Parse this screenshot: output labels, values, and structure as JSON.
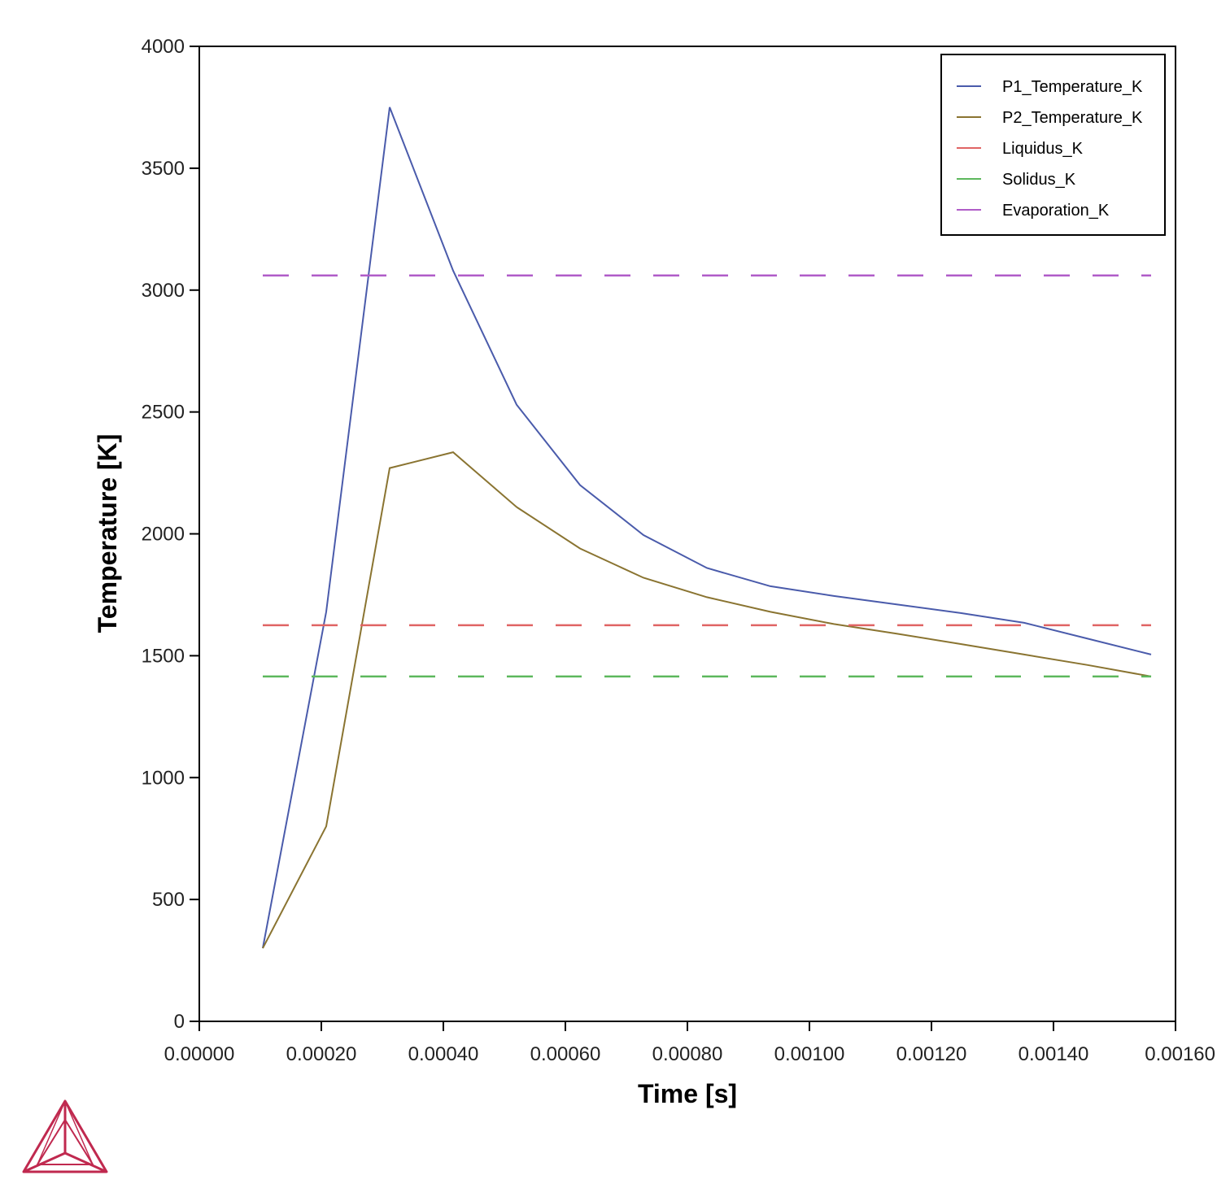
{
  "chart_data": {
    "type": "line",
    "xlabel": "Time [s]",
    "ylabel": "Temperature [K]",
    "xlim": [
      0,
      0.0016
    ],
    "ylim": [
      0,
      4000
    ],
    "xticks": [
      "0.00000",
      "0.00020",
      "0.00040",
      "0.00060",
      "0.00080",
      "0.00100",
      "0.00120",
      "0.00140",
      "0.00160"
    ],
    "yticks": [
      "0",
      "500",
      "1000",
      "1500",
      "2000",
      "2500",
      "3000",
      "3500",
      "4000"
    ],
    "grid": false,
    "legend_position": "top-right",
    "series": [
      {
        "name": "P1_Temperature_K",
        "color": "#4a5bab",
        "style": "solid",
        "x": [
          0.000104,
          0.000208,
          0.000312,
          0.000416,
          0.00052,
          0.000624,
          0.000728,
          0.000832,
          0.000936,
          0.00104,
          0.001144,
          0.001248,
          0.001352,
          0.001456,
          0.00156
        ],
        "y": [
          300,
          1680,
          3750,
          3080,
          2530,
          2200,
          1995,
          1860,
          1785,
          1745,
          1710,
          1675,
          1635,
          1570,
          1505
        ]
      },
      {
        "name": "P2_Temperature_K",
        "color": "#8a7431",
        "style": "solid",
        "x": [
          0.000104,
          0.000208,
          0.000312,
          0.000416,
          0.00052,
          0.000624,
          0.000728,
          0.000832,
          0.000936,
          0.00104,
          0.001144,
          0.001248,
          0.001352,
          0.001456,
          0.00156
        ],
        "y": [
          300,
          800,
          2270,
          2335,
          2110,
          1940,
          1820,
          1740,
          1680,
          1630,
          1590,
          1548,
          1505,
          1462,
          1415
        ]
      },
      {
        "name": "Liquidus_K",
        "color": "#e06464",
        "style": "dashed",
        "x": [
          0.000104,
          0.00156
        ],
        "y": [
          1625,
          1625
        ]
      },
      {
        "name": "Solidus_K",
        "color": "#5cb85c",
        "style": "dashed",
        "x": [
          0.000104,
          0.00156
        ],
        "y": [
          1415,
          1415
        ]
      },
      {
        "name": "Evaporation_K",
        "color": "#b05cc8",
        "style": "dashed",
        "x": [
          0.000104,
          0.00156
        ],
        "y": [
          3060,
          3060
        ]
      }
    ]
  },
  "logo": {
    "icon": "thermo-calc-triangle-logo",
    "color": "#c0294f"
  }
}
